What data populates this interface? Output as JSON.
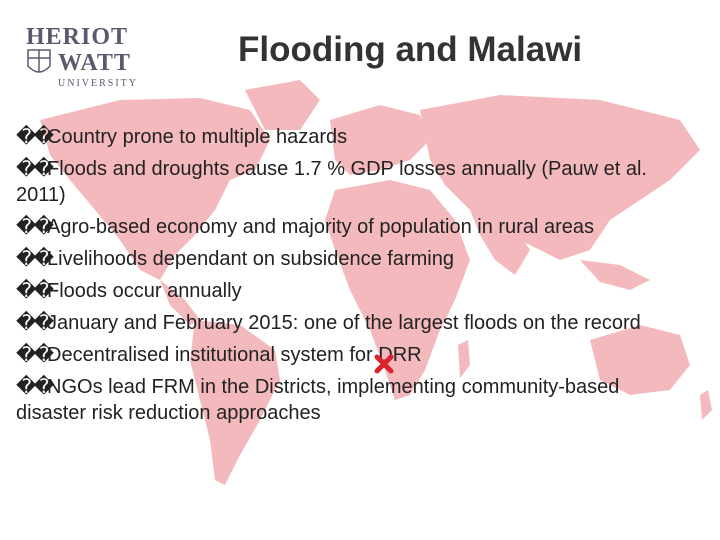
{
  "header": {
    "logo": {
      "line1": "HERIOT",
      "line2": "WATT",
      "line3": "UNIVERSITY"
    },
    "title": "Flooding and Malawi"
  },
  "bullet_glyph": "��",
  "bullets": [
    "Country prone to multiple hazards",
    "Floods and droughts cause 1.7 % GDP losses annually (Pauw et al. 2011)",
    "Agro-based economy and majority of population in rural areas",
    "Livelihoods dependant on subsidence farming",
    "Floods occur annually",
    "January and February 2015: one of the largest floods on the record",
    "Decentralised institutional system for DRR",
    "NGOs lead FRM in the Districts, implementing community-based disaster risk reduction approaches"
  ],
  "colors": {
    "map_fill": "#f4b9bd",
    "marker": "#d9232e",
    "title": "#333333",
    "logo": "#5a5a6e"
  },
  "icons": {
    "marker": "cross-marker-icon",
    "map": "world-map"
  }
}
